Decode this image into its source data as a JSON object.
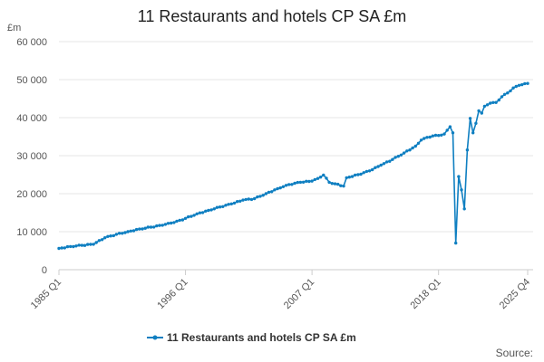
{
  "chart_data": {
    "type": "line",
    "title": "11 Restaurants and hotels CP SA £m",
    "unit_label": "£m",
    "ylim": [
      0,
      60000
    ],
    "y_ticks": [
      0,
      10000,
      20000,
      30000,
      40000,
      50000,
      60000
    ],
    "y_tick_labels": [
      "0",
      "10 000",
      "20 000",
      "30 000",
      "40 000",
      "50 000",
      "60 000"
    ],
    "x_tick_labels": [
      "1985 Q1",
      "1996 Q1",
      "2007 Q1",
      "2018 Q1",
      "2025 Q4"
    ],
    "x_tick_years": [
      1985.0,
      1996.0,
      2007.0,
      2018.0,
      2025.75
    ],
    "xlim": [
      1985.0,
      2025.75
    ],
    "grid": true,
    "legend_position": "bottom",
    "color": "#0f7fc1",
    "series": [
      {
        "name": "11 Restaurants and hotels CP SA £m",
        "points": [
          [
            1985.0,
            5600
          ],
          [
            1986.0,
            6100
          ],
          [
            1987.0,
            6400
          ],
          [
            1988.0,
            6700
          ],
          [
            1989.0,
            8400
          ],
          [
            1990.0,
            9300
          ],
          [
            1991.0,
            10000
          ],
          [
            1992.0,
            10700
          ],
          [
            1993.0,
            11200
          ],
          [
            1994.0,
            11700
          ],
          [
            1994.5,
            12200
          ],
          [
            1995.0,
            12400
          ],
          [
            1996.0,
            13500
          ],
          [
            1997.0,
            14700
          ],
          [
            1998.0,
            15600
          ],
          [
            1999.0,
            16500
          ],
          [
            2000.0,
            17300
          ],
          [
            2001.0,
            18300
          ],
          [
            2002.0,
            18700
          ],
          [
            2003.0,
            20000
          ],
          [
            2004.0,
            21300
          ],
          [
            2004.75,
            22200
          ],
          [
            2005.0,
            22400
          ],
          [
            2006.0,
            23000
          ],
          [
            2007.0,
            23300
          ],
          [
            2007.5,
            24000
          ],
          [
            2008.0,
            24900
          ],
          [
            2008.5,
            23000
          ],
          [
            2009.0,
            22600
          ],
          [
            2009.75,
            22000
          ],
          [
            2010.0,
            24200
          ],
          [
            2011.0,
            25000
          ],
          [
            2012.0,
            26000
          ],
          [
            2013.0,
            27500
          ],
          [
            2014.0,
            29000
          ],
          [
            2015.0,
            30700
          ],
          [
            2016.0,
            32500
          ],
          [
            2016.5,
            34100
          ],
          [
            2017.0,
            34800
          ],
          [
            2017.5,
            35200
          ],
          [
            2018.0,
            35300
          ],
          [
            2018.5,
            35700
          ],
          [
            2019.0,
            37600
          ],
          [
            2019.25,
            36000
          ],
          [
            2019.5,
            7000
          ],
          [
            2019.75,
            24500
          ],
          [
            2020.0,
            21000
          ],
          [
            2020.25,
            16000
          ],
          [
            2020.5,
            31500
          ],
          [
            2020.75,
            39800
          ],
          [
            2021.0,
            36000
          ],
          [
            2021.25,
            38500
          ],
          [
            2021.5,
            41800
          ],
          [
            2021.75,
            41200
          ],
          [
            2022.0,
            43000
          ],
          [
            2022.5,
            43800
          ],
          [
            2023.0,
            44000
          ],
          [
            2023.5,
            45500
          ],
          [
            2024.0,
            46500
          ],
          [
            2024.5,
            47800
          ],
          [
            2025.0,
            48500
          ],
          [
            2025.75,
            49000
          ]
        ]
      }
    ],
    "source": "Source:"
  }
}
